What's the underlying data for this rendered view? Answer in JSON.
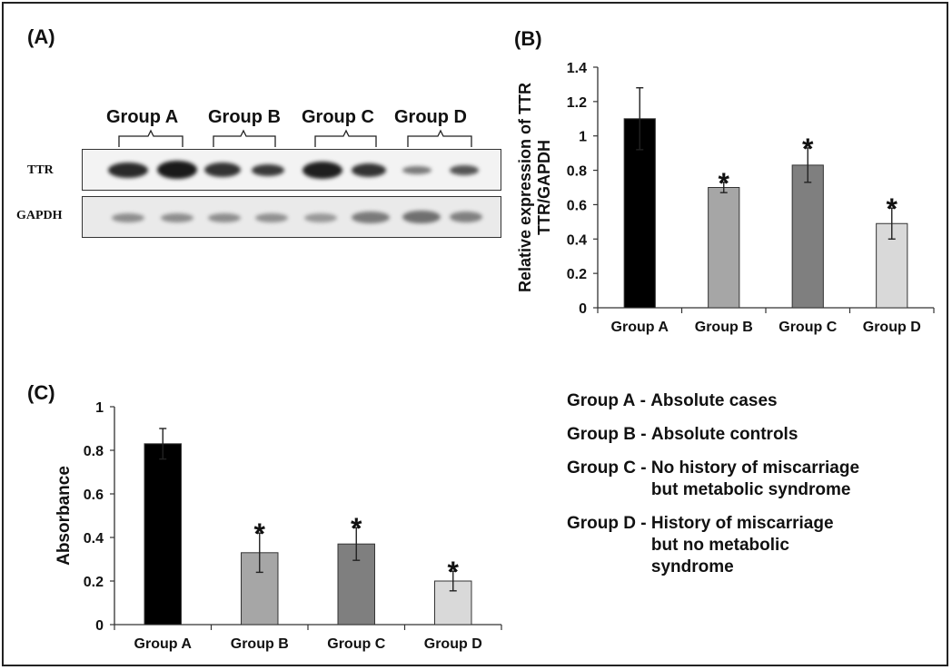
{
  "panels": {
    "a": "(A)",
    "b": "(B)",
    "c": "(C)"
  },
  "blot": {
    "groups": [
      "Group A",
      "Group B",
      "Group C",
      "Group D"
    ],
    "lanes": {
      "ttr": "TTR",
      "gapdh": "GAPDH"
    }
  },
  "legend": [
    {
      "key": "Group A",
      "sep": " - ",
      "desc": "Absolute cases"
    },
    {
      "key": "Group B",
      "sep": " - ",
      "desc": "Absolute controls"
    },
    {
      "key": "Group C",
      "sep": " - ",
      "desc": "No history of miscarriage\nbut metabolic syndrome"
    },
    {
      "key": "Group D",
      "sep": " - ",
      "desc": "History of miscarriage\n but no metabolic\n syndrome"
    }
  ],
  "chart_data": [
    {
      "id": "B",
      "type": "bar",
      "categories": [
        "Group A",
        "Group B",
        "Group C",
        "Group D"
      ],
      "values": [
        1.1,
        0.7,
        0.83,
        0.49
      ],
      "errors": [
        0.18,
        0.03,
        0.1,
        0.09
      ],
      "significant": [
        false,
        true,
        true,
        true
      ],
      "significance_marker": "*",
      "colors": [
        "#000000",
        "#a6a6a6",
        "#7f7f7f",
        "#d9d9d9"
      ],
      "xlabel": "",
      "ylabel": "Relative expression of TTR\nTTR/GAPDH",
      "ylim": [
        0,
        1.4
      ],
      "yticks": [
        "0",
        "0.2",
        "0.4",
        "0.6",
        "0.8",
        "1",
        "1.2",
        "1.4"
      ],
      "grid": false
    },
    {
      "id": "C",
      "type": "bar",
      "categories": [
        "Group A",
        "Group B",
        "Group C",
        "Group D"
      ],
      "values": [
        0.83,
        0.33,
        0.37,
        0.2
      ],
      "errors": [
        0.07,
        0.09,
        0.075,
        0.045
      ],
      "significant": [
        false,
        true,
        true,
        true
      ],
      "significance_marker": "*",
      "colors": [
        "#000000",
        "#a6a6a6",
        "#7f7f7f",
        "#d9d9d9"
      ],
      "xlabel": "",
      "ylabel": "Absorbance",
      "ylim": [
        0,
        1
      ],
      "yticks": [
        "0",
        "0.2",
        "0.4",
        "0.6",
        "0.8",
        "1"
      ],
      "grid": false
    }
  ]
}
